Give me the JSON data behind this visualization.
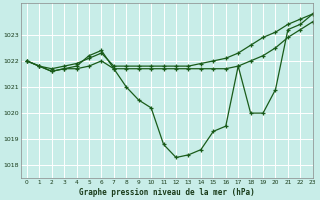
{
  "title": "Graphe pression niveau de la mer (hPa)",
  "background_color": "#c8ede8",
  "grid_color": "#b0d8d0",
  "line_color": "#1a5c1a",
  "xlim": [
    -0.5,
    23
  ],
  "ylim": [
    1017.5,
    1024.2
  ],
  "yticks": [
    1018,
    1019,
    1020,
    1021,
    1022,
    1023
  ],
  "xticks": [
    0,
    1,
    2,
    3,
    4,
    5,
    6,
    7,
    8,
    9,
    10,
    11,
    12,
    13,
    14,
    15,
    16,
    17,
    18,
    19,
    20,
    21,
    22,
    23
  ],
  "hours": [
    0,
    1,
    2,
    3,
    4,
    5,
    6,
    7,
    8,
    9,
    10,
    11,
    12,
    13,
    14,
    15,
    16,
    17,
    18,
    19,
    20,
    21,
    22,
    23
  ],
  "y_main": [
    1022.0,
    1021.8,
    1021.6,
    1021.7,
    1021.8,
    1022.2,
    1022.4,
    1021.7,
    1021.0,
    1020.5,
    1020.2,
    1018.8,
    1018.3,
    1018.4,
    1018.6,
    1019.3,
    1019.5,
    1021.8,
    1020.0,
    1020.0,
    1020.9,
    1023.2,
    1023.4,
    1023.8
  ],
  "y_line2": [
    1022.0,
    1021.8,
    1021.6,
    1021.7,
    1021.7,
    1021.8,
    1022.0,
    1021.7,
    1021.7,
    1021.7,
    1021.7,
    1021.7,
    1021.7,
    1021.7,
    1021.7,
    1021.7,
    1021.7,
    1021.8,
    1022.0,
    1022.2,
    1022.5,
    1022.9,
    1023.2,
    1023.5
  ],
  "y_line3": [
    1022.0,
    1021.8,
    1021.7,
    1021.8,
    1021.9,
    1022.1,
    1022.3,
    1021.8,
    1021.8,
    1021.8,
    1021.8,
    1021.8,
    1021.8,
    1021.8,
    1021.9,
    1022.0,
    1022.1,
    1022.3,
    1022.6,
    1022.9,
    1023.1,
    1023.4,
    1023.6,
    1023.8
  ]
}
